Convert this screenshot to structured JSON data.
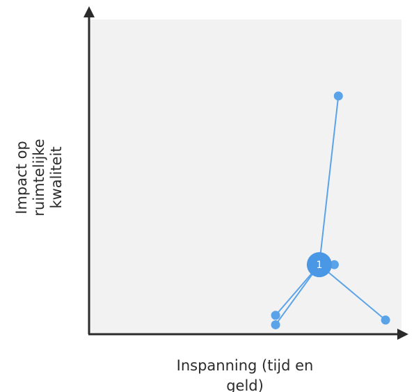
{
  "chart_data": {
    "type": "scatter",
    "xlabel": "Inspanning (tijd en geld)",
    "ylabel": "Impact op ruimtelijke kwaliteit",
    "xlim": [
      0,
      10
    ],
    "ylim": [
      0,
      10
    ],
    "grid": false,
    "colors": {
      "plot_background": "#f2f2f2",
      "axis": "#2b2b2b",
      "series": "#5ba3e8",
      "cluster": "#4a97e6"
    },
    "cluster": {
      "label": "1",
      "x": 7.37,
      "y": 2.21
    },
    "points": [
      {
        "x": 7.98,
        "y": 7.57
      },
      {
        "x": 7.85,
        "y": 2.21
      },
      {
        "x": 5.97,
        "y": 0.6
      },
      {
        "x": 5.97,
        "y": 0.3
      },
      {
        "x": 9.49,
        "y": 0.45
      }
    ]
  }
}
